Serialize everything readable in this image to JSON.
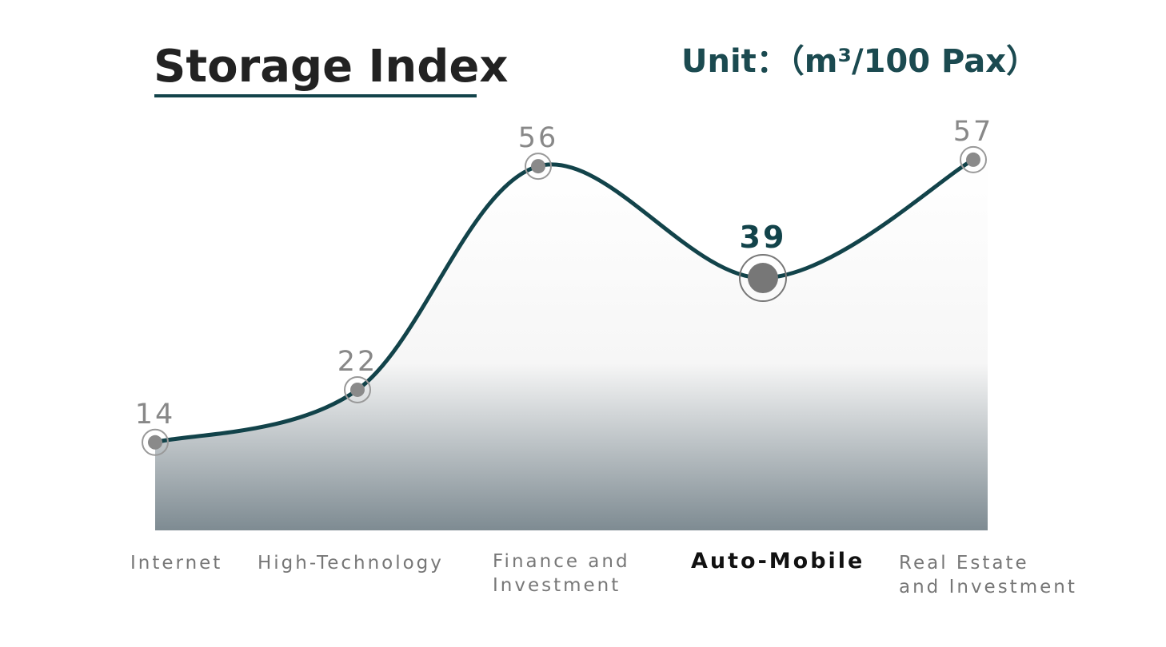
{
  "chart_data": {
    "type": "line",
    "title": "Storage Index",
    "unit": "Unit：（m³/100 Pax）",
    "categories": [
      "Internet",
      "High-Technology",
      "Finance and\nInvestment",
      "Auto-Mobile",
      "Real Estate\nand Investment"
    ],
    "values": [
      14,
      22,
      56,
      39,
      57
    ],
    "color": "#12434a",
    "highlight_index": 3
  }
}
